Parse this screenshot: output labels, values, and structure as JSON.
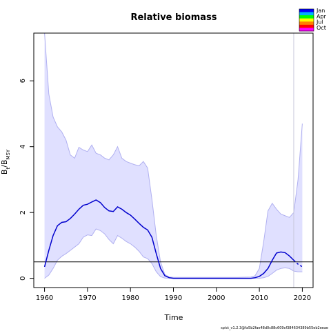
{
  "chart_data": {
    "type": "line",
    "title": "Relative biomass",
    "xlabel": "Time",
    "ylabel_main": "B",
    "ylabel_sub1": "t",
    "ylabel_mid": "/B",
    "ylabel_sub2": "MSY",
    "xlim": [
      1957.5,
      2022.5
    ],
    "ylim": [
      -0.28,
      7.45
    ],
    "xticks": [
      1960,
      1970,
      1980,
      1990,
      2000,
      2010,
      2020
    ],
    "xtick_labels": [
      "1960",
      "1970",
      "1980",
      "1990",
      "2000",
      "2010",
      "2020"
    ],
    "yticks": [
      0,
      2,
      4,
      6
    ],
    "ytick_labels": [
      "0",
      "2",
      "4",
      "6"
    ],
    "grid": false,
    "reference_line_y": 0.5,
    "vertical_line_x": 2018,
    "estimate": {
      "x": [
        1960,
        1961,
        1962,
        1963,
        1964,
        1965,
        1966,
        1967,
        1968,
        1969,
        1970,
        1971,
        1972,
        1973,
        1974,
        1975,
        1976,
        1977,
        1978,
        1979,
        1980,
        1981,
        1982,
        1983,
        1984,
        1985,
        1986,
        1987,
        1988,
        1989,
        1990,
        1992,
        1995,
        1998,
        2000,
        2005,
        2008,
        2009,
        2010,
        2011,
        2012,
        2013,
        2014,
        2015,
        2016,
        2017,
        2018
      ],
      "y": [
        0.35,
        0.85,
        1.3,
        1.6,
        1.7,
        1.72,
        1.82,
        1.95,
        2.1,
        2.22,
        2.25,
        2.32,
        2.38,
        2.3,
        2.15,
        2.05,
        2.03,
        2.17,
        2.1,
        2.0,
        1.92,
        1.8,
        1.67,
        1.55,
        1.47,
        1.25,
        0.75,
        0.3,
        0.08,
        0.02,
        0.0,
        0.0,
        0.0,
        0.0,
        0.0,
        0.0,
        0.0,
        0.02,
        0.06,
        0.15,
        0.3,
        0.55,
        0.77,
        0.8,
        0.78,
        0.68,
        0.55
      ]
    },
    "forecast": {
      "x": [
        2018,
        2019,
        2020
      ],
      "y": [
        0.55,
        0.43,
        0.35
      ]
    },
    "ci_upper": {
      "x": [
        1960,
        1961,
        1962,
        1963,
        1964,
        1965,
        1966,
        1967,
        1968,
        1969,
        1970,
        1971,
        1972,
        1973,
        1974,
        1975,
        1976,
        1977,
        1978,
        1979,
        1980,
        1981,
        1982,
        1983,
        1984,
        1985,
        1986,
        1987,
        1988,
        1989,
        1990,
        1995,
        2000,
        2005,
        2008,
        2009,
        2010,
        2011,
        2012,
        2013,
        2014,
        2015,
        2016,
        2017,
        2018,
        2019,
        2020
      ],
      "y": [
        7.5,
        5.6,
        4.9,
        4.6,
        4.45,
        4.2,
        3.75,
        3.65,
        3.98,
        3.9,
        3.85,
        4.05,
        3.8,
        3.75,
        3.65,
        3.6,
        3.75,
        4.0,
        3.65,
        3.55,
        3.5,
        3.45,
        3.42,
        3.55,
        3.35,
        2.4,
        1.3,
        0.5,
        0.12,
        0.04,
        0.03,
        0.03,
        0.03,
        0.03,
        0.04,
        0.08,
        0.3,
        1.1,
        2.05,
        2.28,
        2.1,
        1.95,
        1.9,
        1.85,
        2.0,
        3.0,
        4.7
      ]
    },
    "ci_lower": {
      "x": [
        1960,
        1961,
        1962,
        1963,
        1964,
        1965,
        1966,
        1967,
        1968,
        1969,
        1970,
        1971,
        1972,
        1973,
        1974,
        1975,
        1976,
        1977,
        1978,
        1979,
        1980,
        1981,
        1982,
        1983,
        1984,
        1985,
        1986,
        1987,
        1988,
        1990,
        1995,
        2000,
        2005,
        2008,
        2009,
        2010,
        2011,
        2012,
        2013,
        2014,
        2015,
        2016,
        2017,
        2018,
        2019,
        2020
      ],
      "y": [
        0.0,
        0.1,
        0.3,
        0.55,
        0.67,
        0.75,
        0.85,
        0.95,
        1.05,
        1.25,
        1.32,
        1.3,
        1.5,
        1.45,
        1.35,
        1.18,
        1.05,
        1.3,
        1.22,
        1.12,
        1.05,
        0.95,
        0.82,
        0.65,
        0.6,
        0.45,
        0.2,
        0.05,
        0.01,
        0.0,
        0.0,
        0.0,
        0.0,
        0.0,
        0.0,
        0.0,
        0.02,
        0.06,
        0.15,
        0.25,
        0.3,
        0.32,
        0.3,
        0.22,
        0.2,
        0.2
      ]
    },
    "colors": {
      "estimate": "#0000cd",
      "band_fill": "#e0e0ff",
      "band_edge": "#b0b0f0",
      "reference_line": "#000000",
      "vertical_line": "#c8c8dc"
    },
    "legend": {
      "position": "top-right",
      "entries": [
        "Jan",
        "Apr",
        "Jul",
        "Oct"
      ],
      "colors": [
        "#0000ff",
        "#00b0ff",
        "#00ff00",
        "#ffff00",
        "#ff8000",
        "#ff0000",
        "#ff00ff"
      ]
    }
  },
  "footer": {
    "version_stamp": "spict_v1.2.3@fa5b2fae48d0c88c609cf384634389b55eb2eeae"
  }
}
